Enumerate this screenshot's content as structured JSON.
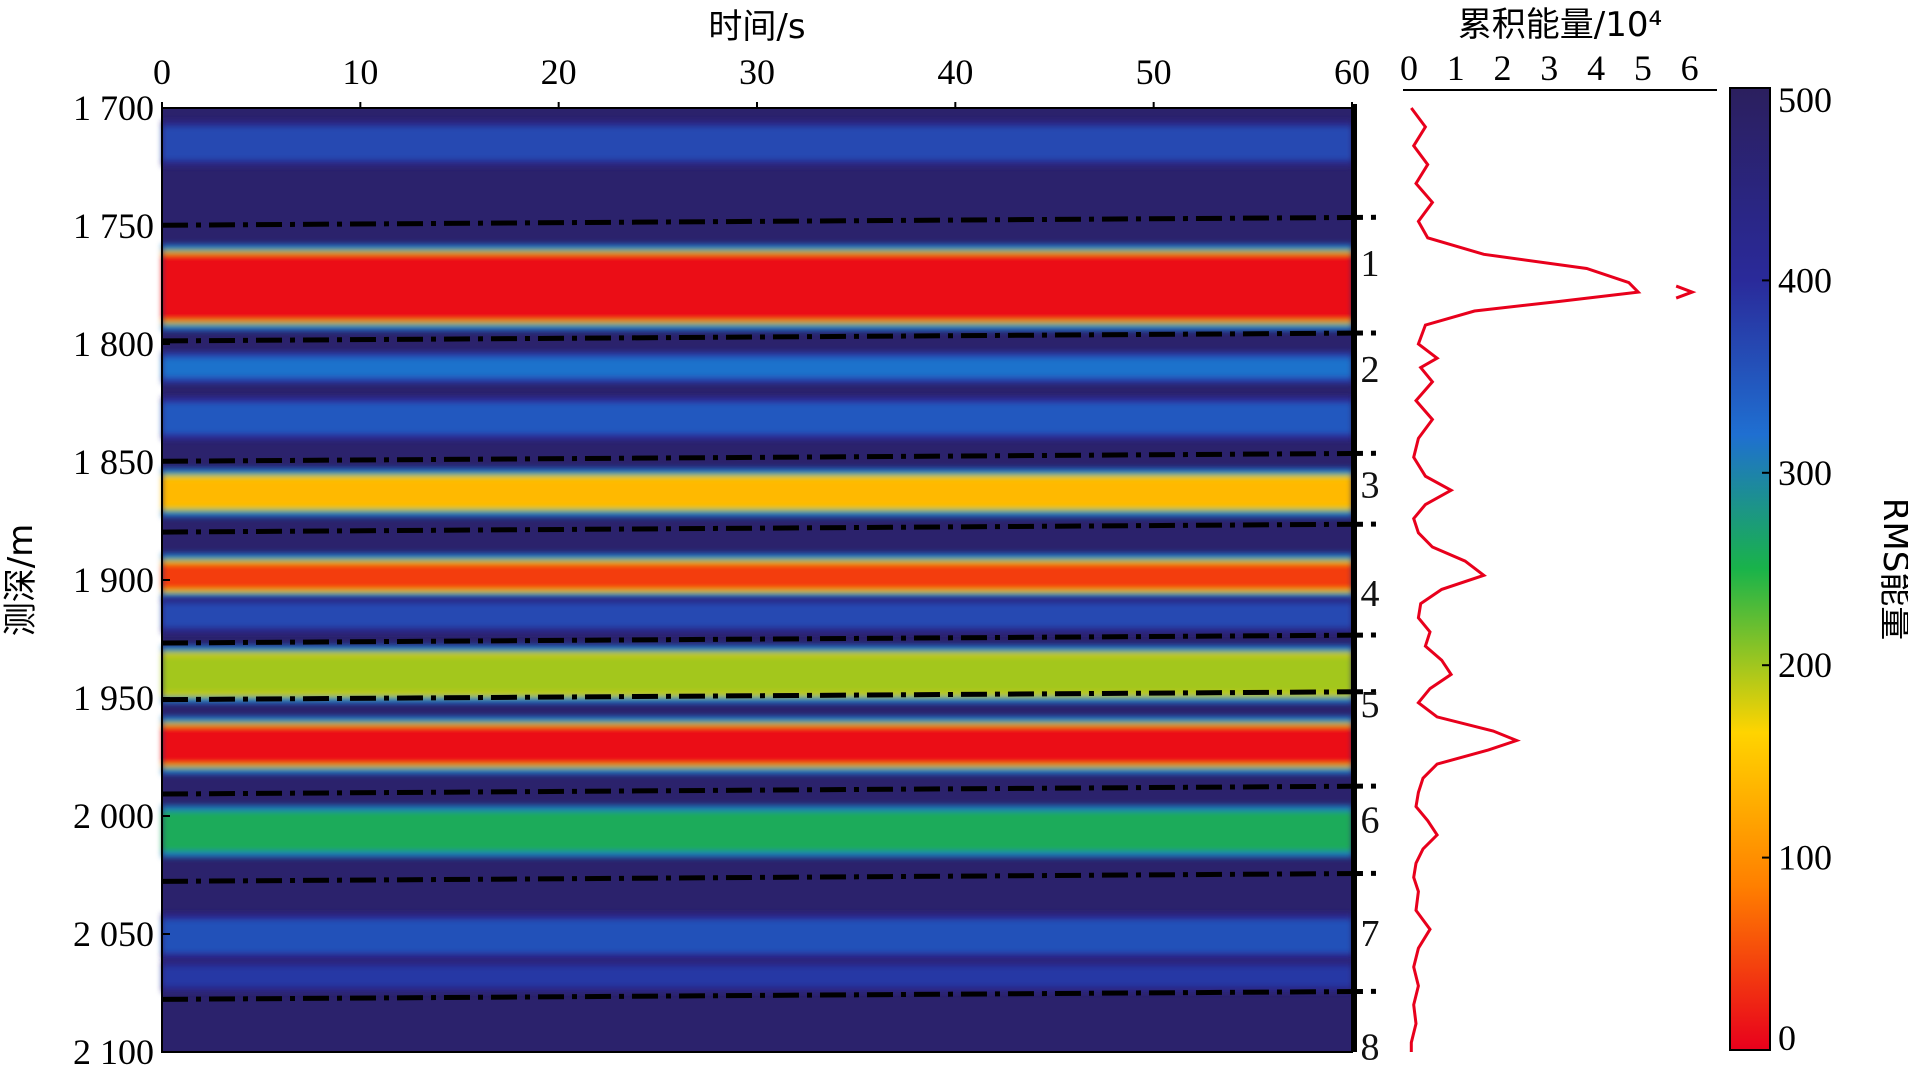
{
  "chart_data": [
    {
      "type": "heatmap",
      "title": "",
      "xlabel": "时间/s",
      "ylabel": "测深/m",
      "xlim": [
        0,
        60
      ],
      "ylim": [
        1700,
        2100
      ],
      "x_ticks": [
        0,
        10,
        20,
        30,
        40,
        50,
        60
      ],
      "y_ticks": [
        1700,
        1750,
        1800,
        1850,
        1900,
        1950,
        2000,
        2050,
        2100
      ],
      "y_tick_labels": [
        "1 700",
        "1 750",
        "1 800",
        "1 850",
        "1 900",
        "1 950",
        "2 000",
        "2 050",
        "2 100"
      ],
      "colorbar": {
        "label": "RMS能量",
        "range": [
          0,
          500
        ],
        "ticks": [
          0,
          100,
          200,
          300,
          400,
          500
        ],
        "colors": [
          "#e8001c",
          "#ff7f00",
          "#ffd400",
          "#19b34a",
          "#1f6fd1",
          "#2a2a9a",
          "#2b1f5e"
        ]
      },
      "background_value": 480,
      "bands": [
        {
          "depth_min": 1708,
          "depth_max": 1722,
          "value": 380
        },
        {
          "depth_min": 1762,
          "depth_max": 1790,
          "value": 10
        },
        {
          "depth_min": 1806,
          "depth_max": 1814,
          "value": 330
        },
        {
          "depth_min": 1825,
          "depth_max": 1838,
          "value": 360
        },
        {
          "depth_min": 1857,
          "depth_max": 1869,
          "value": 140
        },
        {
          "depth_min": 1893,
          "depth_max": 1904,
          "value": 40
        },
        {
          "depth_min": 1910,
          "depth_max": 1920,
          "value": 380
        },
        {
          "depth_min": 1932,
          "depth_max": 1948,
          "value": 200
        },
        {
          "depth_min": 1962,
          "depth_max": 1978,
          "value": 10
        },
        {
          "depth_min": 1998,
          "depth_max": 2015,
          "value": 260
        },
        {
          "depth_min": 2044,
          "depth_max": 2058,
          "value": 370
        },
        {
          "depth_min": 2064,
          "depth_max": 2072,
          "value": 400
        }
      ],
      "boundaries": [
        1748,
        1797,
        1848,
        1878,
        1925,
        1949,
        1989,
        2026,
        2076
      ],
      "zones": [
        {
          "label": "1",
          "depth": 1766
        },
        {
          "label": "2",
          "depth": 1811
        },
        {
          "label": "3",
          "depth": 1860
        },
        {
          "label": "4",
          "depth": 1906
        },
        {
          "label": "5",
          "depth": 1953
        },
        {
          "label": "6",
          "depth": 2002
        },
        {
          "label": "7",
          "depth": 2050
        },
        {
          "label": "8",
          "depth": 2098
        }
      ]
    },
    {
      "type": "line",
      "xlabel": "累积能量/10⁴",
      "xlim": [
        0,
        6.5
      ],
      "x_ticks": [
        0,
        1,
        2,
        3,
        4,
        5,
        6
      ],
      "color": "#e8001c",
      "depth": [
        1700,
        1708,
        1716,
        1724,
        1732,
        1740,
        1748,
        1755,
        1762,
        1768,
        1774,
        1778,
        1782,
        1786,
        1792,
        1800,
        1806,
        1810,
        1816,
        1824,
        1832,
        1840,
        1848,
        1856,
        1862,
        1868,
        1874,
        1880,
        1886,
        1892,
        1898,
        1904,
        1910,
        1916,
        1922,
        1928,
        1934,
        1940,
        1946,
        1952,
        1958,
        1964,
        1968,
        1972,
        1978,
        1984,
        1990,
        1996,
        2002,
        2008,
        2014,
        2020,
        2026,
        2032,
        2040,
        2048,
        2056,
        2064,
        2072,
        2080,
        2088,
        2096,
        2100
      ],
      "values": [
        0.05,
        0.35,
        0.1,
        0.4,
        0.15,
        0.5,
        0.2,
        0.4,
        1.6,
        3.8,
        4.7,
        4.9,
        3.2,
        1.4,
        0.35,
        0.2,
        0.6,
        0.25,
        0.5,
        0.15,
        0.5,
        0.2,
        0.1,
        0.35,
        0.9,
        0.35,
        0.1,
        0.2,
        0.5,
        1.2,
        1.6,
        0.7,
        0.25,
        0.2,
        0.45,
        0.35,
        0.7,
        0.9,
        0.45,
        0.2,
        0.6,
        1.8,
        2.3,
        1.7,
        0.6,
        0.3,
        0.2,
        0.15,
        0.4,
        0.6,
        0.3,
        0.15,
        0.1,
        0.2,
        0.15,
        0.45,
        0.2,
        0.1,
        0.2,
        0.1,
        0.15,
        0.05,
        0.05
      ]
    }
  ]
}
